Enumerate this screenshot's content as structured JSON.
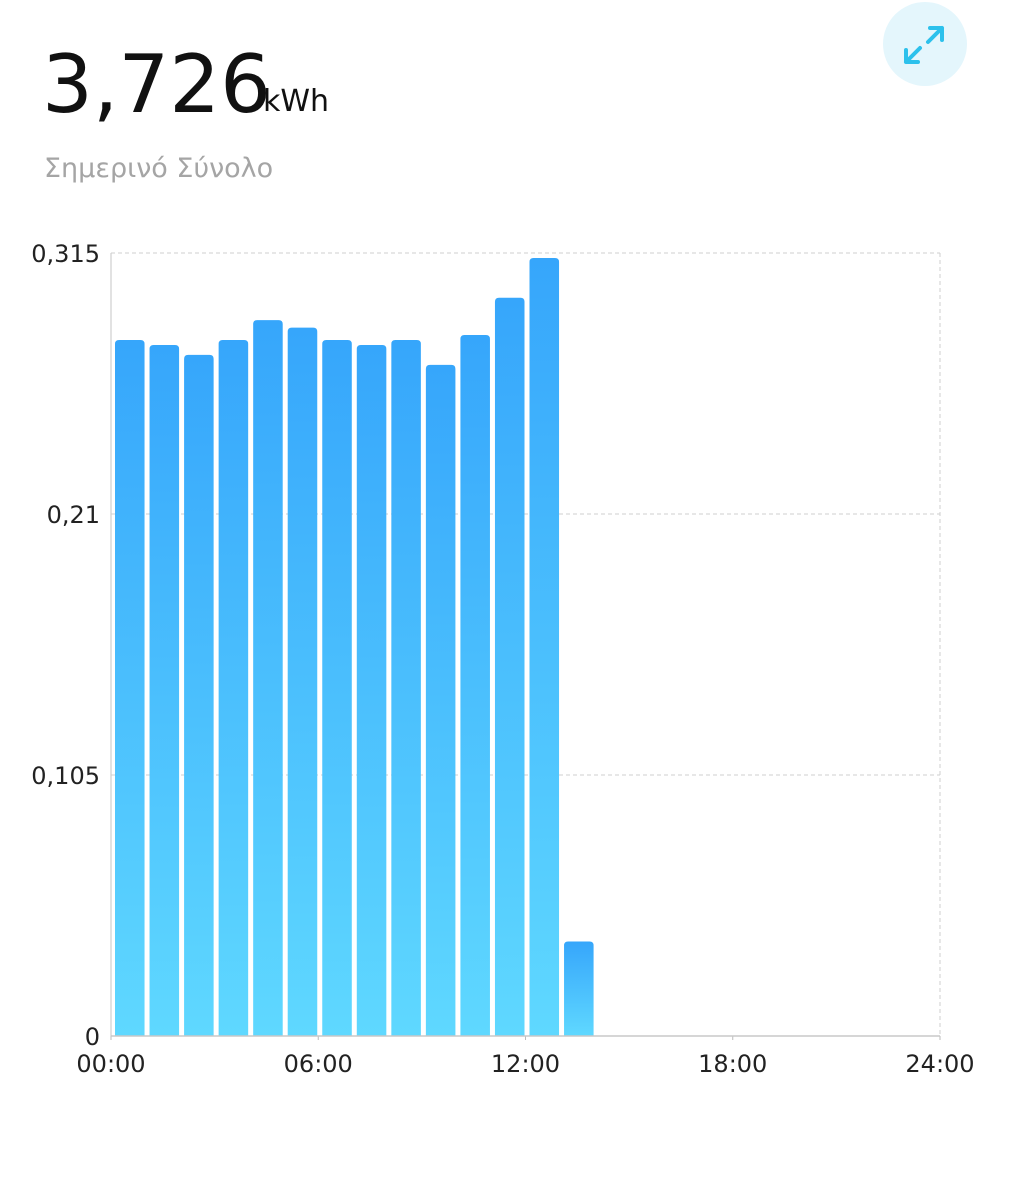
{
  "header": {
    "value": "3,726",
    "unit": "kWh",
    "subtitle": "Σημερινό Σύνολο"
  },
  "chart_data": {
    "type": "bar",
    "x": [
      0,
      1,
      2,
      3,
      4,
      5,
      6,
      7,
      8,
      9,
      10,
      11,
      12,
      13
    ],
    "values": [
      0.28,
      0.278,
      0.274,
      0.28,
      0.288,
      0.285,
      0.28,
      0.278,
      0.28,
      0.27,
      0.282,
      0.297,
      0.313,
      0.038
    ],
    "color": [
      "#36a6fb",
      "#5fd8ff"
    ],
    "xlim": [
      0,
      24
    ],
    "xticks": [
      {
        "value": 0,
        "label": "00:00"
      },
      {
        "value": 6,
        "label": "06:00"
      },
      {
        "value": 12,
        "label": "12:00"
      },
      {
        "value": 18,
        "label": "18:00"
      },
      {
        "value": 24,
        "label": "24:00"
      }
    ],
    "ylim": [
      0,
      0.315
    ],
    "yticks": [
      0,
      {
        "value": 0.105,
        "label": "0,105"
      },
      {
        "value": 0.21,
        "label": "0,21"
      },
      {
        "value": 0.315,
        "label": "0,315"
      }
    ],
    "grid": true
  }
}
